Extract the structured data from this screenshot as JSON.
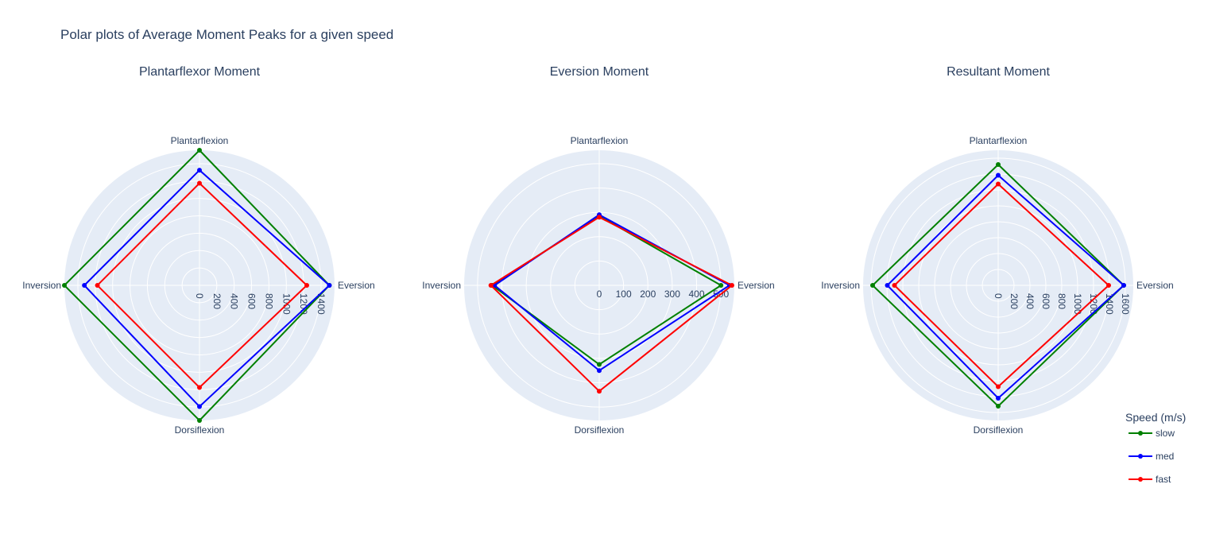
{
  "title": "Polar plots of Average Moment Peaks for a given speed",
  "legend": {
    "title": "Speed (m/s)",
    "placement": "bottom-right",
    "items": [
      {
        "name": "slow",
        "color": "#008000"
      },
      {
        "name": "med",
        "color": "#0000ff"
      },
      {
        "name": "fast",
        "color": "#ff0000"
      }
    ]
  },
  "chart_data": [
    {
      "type": "radar",
      "title": "Plantarflexor Moment",
      "categories": [
        "Eversion",
        "Plantarflexion",
        "Inversion",
        "Dorsiflexion"
      ],
      "rlim": [
        0,
        1555
      ],
      "rticks": [
        0,
        200,
        400,
        600,
        800,
        1000,
        1200,
        1400
      ],
      "series": [
        {
          "name": "slow",
          "values": [
            1495,
            1555,
            1555,
            1555
          ]
        },
        {
          "name": "med",
          "values": [
            1495,
            1325,
            1325,
            1395
          ]
        },
        {
          "name": "fast",
          "values": [
            1235,
            1175,
            1175,
            1175
          ]
        }
      ]
    },
    {
      "type": "radar",
      "title": "Eversion Moment",
      "categories": [
        "Eversion",
        "Plantarflexion",
        "Inversion",
        "Dorsiflexion"
      ],
      "rlim": [
        0,
        555
      ],
      "rticks": [
        0,
        100,
        200,
        300,
        400,
        500
      ],
      "series": [
        {
          "name": "slow",
          "values": [
            500,
            285,
            440,
            325
          ]
        },
        {
          "name": "med",
          "values": [
            535,
            290,
            430,
            350
          ]
        },
        {
          "name": "fast",
          "values": [
            545,
            280,
            445,
            435
          ]
        }
      ]
    },
    {
      "type": "radar",
      "title": "Resultant Moment",
      "categories": [
        "Eversion",
        "Plantarflexion",
        "Inversion",
        "Dorsiflexion"
      ],
      "rlim": [
        0,
        1700
      ],
      "rticks": [
        0,
        200,
        400,
        600,
        800,
        1000,
        1200,
        1400,
        1600
      ],
      "series": [
        {
          "name": "slow",
          "values": [
            1580,
            1520,
            1580,
            1520
          ]
        },
        {
          "name": "med",
          "values": [
            1580,
            1385,
            1395,
            1420
          ]
        },
        {
          "name": "fast",
          "values": [
            1390,
            1275,
            1305,
            1275
          ]
        }
      ]
    }
  ]
}
